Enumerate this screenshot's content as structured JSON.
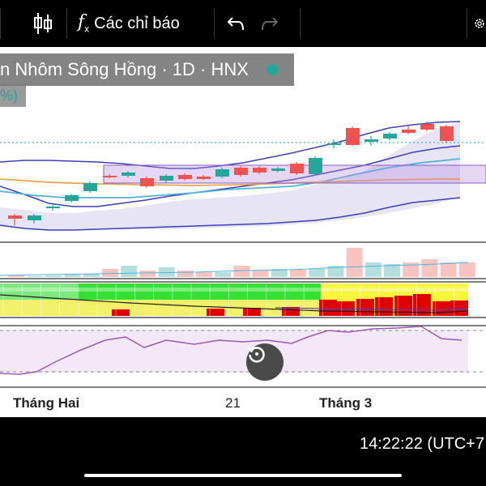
{
  "toolbar": {
    "indicators_label": "Các chỉ báo",
    "icons": [
      "candlestick-icon",
      "function-icon",
      "undo-icon",
      "redo-icon",
      "settings-icon"
    ]
  },
  "legend": {
    "title": "n Nhôm Sông Hồng · 1D · HNX",
    "change": "%)"
  },
  "x_axis": {
    "labels": [
      "Tháng Hai",
      "21",
      "Tháng 3"
    ]
  },
  "status": {
    "time": "14:22:22 (UTC+7"
  },
  "colors": {
    "up": "#26a69a",
    "down": "#ef5350",
    "band_line": "#3f3fb5",
    "band_fill": "#e6e4f5",
    "ma_blue": "#4fb3d9",
    "ma_orange": "#e8a44a",
    "rsi_line": "#9b59b6",
    "rsi_bg": "#f3e8f7"
  },
  "chart_data": {
    "type": "candlestick",
    "candles": [
      {
        "dir": "down"
      },
      {
        "dir": "up"
      },
      {
        "dir": "up"
      },
      {
        "dir": "up"
      },
      {
        "dir": "up"
      },
      {
        "dir": "down"
      },
      {
        "dir": "up"
      },
      {
        "dir": "down"
      },
      {
        "dir": "up"
      },
      {
        "dir": "down"
      },
      {
        "dir": "down"
      },
      {
        "dir": "up"
      },
      {
        "dir": "down"
      },
      {
        "dir": "down"
      },
      {
        "dir": "up"
      },
      {
        "dir": "down"
      },
      {
        "dir": "up"
      },
      {
        "dir": "up"
      },
      {
        "dir": "down"
      },
      {
        "dir": "up"
      },
      {
        "dir": "up"
      },
      {
        "dir": "down"
      },
      {
        "dir": "down"
      },
      {
        "dir": "down"
      }
    ],
    "volume_panel": true,
    "rsi_panel": true,
    "grid": false
  }
}
